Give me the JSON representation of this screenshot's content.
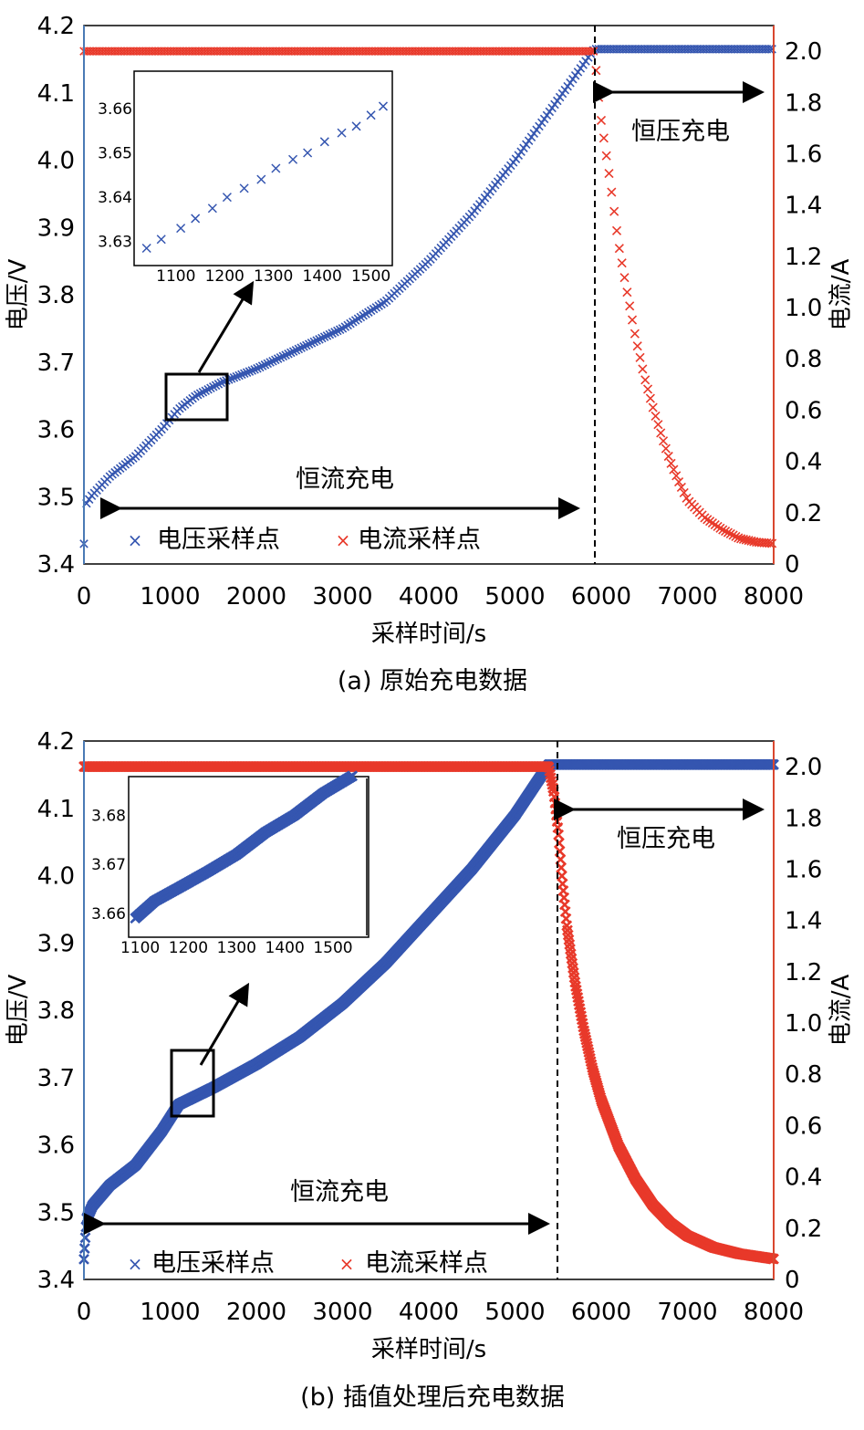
{
  "colors": {
    "voltage": "#3556b0",
    "current": "#e8392a",
    "left_axis": "#4a7ab5",
    "right_axis": "#d9472f"
  },
  "chart_data": [
    {
      "id": "a",
      "type": "scatter",
      "caption": "(a) 原始充电数据",
      "xlabel": "采样时间/s",
      "ylabel_left": "电压/V",
      "ylabel_right": "电流/A",
      "xlim": [
        0,
        8000
      ],
      "ylim_left": [
        3.4,
        4.2
      ],
      "ylim_right": [
        0,
        2.1
      ],
      "xticks": [
        "0",
        "1000",
        "2000",
        "3000",
        "4000",
        "5000",
        "6000",
        "7000",
        "8000"
      ],
      "yticks_left": [
        "3.4",
        "3.5",
        "3.6",
        "3.7",
        "3.8",
        "3.9",
        "4.0",
        "4.1",
        "4.2"
      ],
      "yticks_right": [
        "0",
        "0.2",
        "0.4",
        "0.6",
        "0.8",
        "1.0",
        "1.2",
        "1.4",
        "1.6",
        "1.8",
        "2.0"
      ],
      "cv_start": 5920,
      "marker_step": 30,
      "legend": [
        "电压采样点",
        "电流采样点"
      ],
      "annotations": {
        "cc": "恒流充电",
        "cv": "恒压充电"
      },
      "voltage_curve": [
        [
          0,
          3.43
        ],
        [
          30,
          3.49
        ],
        [
          80,
          3.5
        ],
        [
          300,
          3.53
        ],
        [
          600,
          3.56
        ],
        [
          900,
          3.6
        ],
        [
          1100,
          3.63
        ],
        [
          1300,
          3.65
        ],
        [
          1600,
          3.67
        ],
        [
          2000,
          3.69
        ],
        [
          2500,
          3.72
        ],
        [
          3000,
          3.75
        ],
        [
          3500,
          3.79
        ],
        [
          4000,
          3.85
        ],
        [
          4500,
          3.92
        ],
        [
          5000,
          4.0
        ],
        [
          5500,
          4.09
        ],
        [
          5920,
          4.165
        ],
        [
          8000,
          4.165
        ]
      ],
      "current_curve": [
        [
          0,
          2.0
        ],
        [
          5920,
          2.0
        ],
        [
          5960,
          1.85
        ],
        [
          6000,
          1.73
        ],
        [
          6100,
          1.5
        ],
        [
          6200,
          1.25
        ],
        [
          6300,
          1.06
        ],
        [
          6400,
          0.88
        ],
        [
          6500,
          0.73
        ],
        [
          6600,
          0.61
        ],
        [
          6700,
          0.5
        ],
        [
          6800,
          0.4
        ],
        [
          6900,
          0.32
        ],
        [
          7000,
          0.25
        ],
        [
          7200,
          0.18
        ],
        [
          7400,
          0.135
        ],
        [
          7600,
          0.1
        ],
        [
          7800,
          0.085
        ],
        [
          8000,
          0.08
        ]
      ],
      "box": {
        "x": [
          950,
          1650
        ],
        "y": [
          3.62,
          3.685
        ]
      },
      "inset": {
        "xlim": [
          1020,
          1540
        ],
        "ylim": [
          3.625,
          3.668
        ],
        "xticks": [
          "1100",
          "1200",
          "1300",
          "1400",
          "1500"
        ],
        "yticks": [
          "3.63",
          "3.64",
          "3.65",
          "3.66"
        ],
        "voltage_points": [
          [
            1040,
            3.6285
          ],
          [
            1070,
            3.6305
          ],
          [
            1110,
            3.633
          ],
          [
            1140,
            3.6352
          ],
          [
            1175,
            3.6375
          ],
          [
            1205,
            3.64
          ],
          [
            1240,
            3.642
          ],
          [
            1275,
            3.644
          ],
          [
            1305,
            3.6465
          ],
          [
            1340,
            3.6485
          ],
          [
            1370,
            3.65
          ],
          [
            1405,
            3.6525
          ],
          [
            1440,
            3.6545
          ],
          [
            1470,
            3.656
          ],
          [
            1500,
            3.6585
          ],
          [
            1525,
            3.6605
          ]
        ]
      }
    },
    {
      "id": "b",
      "type": "scatter",
      "caption": "(b) 插值处理后充电数据",
      "xlabel": "采样时间/s",
      "ylabel_left": "电压/V",
      "ylabel_right": "电流/A",
      "xlim": [
        0,
        8000
      ],
      "ylim_left": [
        3.4,
        4.2
      ],
      "ylim_right": [
        0,
        2.1
      ],
      "xticks": [
        "0",
        "1000",
        "2000",
        "3000",
        "4000",
        "5000",
        "6000",
        "7000",
        "8000"
      ],
      "yticks_left": [
        "3.4",
        "3.5",
        "3.6",
        "3.7",
        "3.8",
        "3.9",
        "4.0",
        "4.1",
        "4.2"
      ],
      "yticks_right": [
        "0",
        "0.2",
        "0.4",
        "0.6",
        "0.8",
        "1.0",
        "1.2",
        "1.4",
        "1.6",
        "1.8",
        "2.0"
      ],
      "cv_start": 5390,
      "marker_step": 8,
      "legend": [
        "电压采样点",
        "电流采样点"
      ],
      "annotations": {
        "cc": "恒流充电",
        "cv": "恒压充电"
      },
      "voltage_curve": [
        [
          0,
          3.43
        ],
        [
          30,
          3.49
        ],
        [
          100,
          3.51
        ],
        [
          300,
          3.54
        ],
        [
          600,
          3.57
        ],
        [
          900,
          3.62
        ],
        [
          1100,
          3.66
        ],
        [
          1500,
          3.685
        ],
        [
          2000,
          3.72
        ],
        [
          2500,
          3.76
        ],
        [
          3000,
          3.81
        ],
        [
          3500,
          3.87
        ],
        [
          4000,
          3.94
        ],
        [
          4500,
          4.01
        ],
        [
          5000,
          4.09
        ],
        [
          5390,
          4.165
        ],
        [
          8000,
          4.165
        ]
      ],
      "current_curve": [
        [
          0,
          2.0
        ],
        [
          5390,
          2.0
        ],
        [
          5450,
          1.9
        ],
        [
          5500,
          1.75
        ],
        [
          5550,
          1.55
        ],
        [
          5600,
          1.38
        ],
        [
          5700,
          1.15
        ],
        [
          5800,
          0.97
        ],
        [
          5900,
          0.82
        ],
        [
          6000,
          0.7
        ],
        [
          6200,
          0.52
        ],
        [
          6400,
          0.39
        ],
        [
          6600,
          0.29
        ],
        [
          6800,
          0.22
        ],
        [
          7000,
          0.17
        ],
        [
          7300,
          0.125
        ],
        [
          7600,
          0.1
        ],
        [
          8000,
          0.08
        ]
      ],
      "box": {
        "x": [
          1000,
          1530
        ],
        "y": [
          3.655,
          3.71
        ]
      },
      "inset": {
        "xlim": [
          1080,
          1570
        ],
        "ylim": [
          3.6555,
          3.6875
        ],
        "xticks": [
          "1100",
          "1200",
          "1300",
          "1400",
          "1500"
        ],
        "yticks": [
          "3.66",
          "3.67",
          "3.68"
        ],
        "voltage_curve": [
          [
            1090,
            3.659
          ],
          [
            1130,
            3.6625
          ],
          [
            1180,
            3.6652
          ],
          [
            1240,
            3.6685
          ],
          [
            1300,
            3.672
          ],
          [
            1360,
            3.6765
          ],
          [
            1420,
            3.68
          ],
          [
            1480,
            3.6845
          ],
          [
            1540,
            3.688
          ]
        ]
      }
    }
  ]
}
